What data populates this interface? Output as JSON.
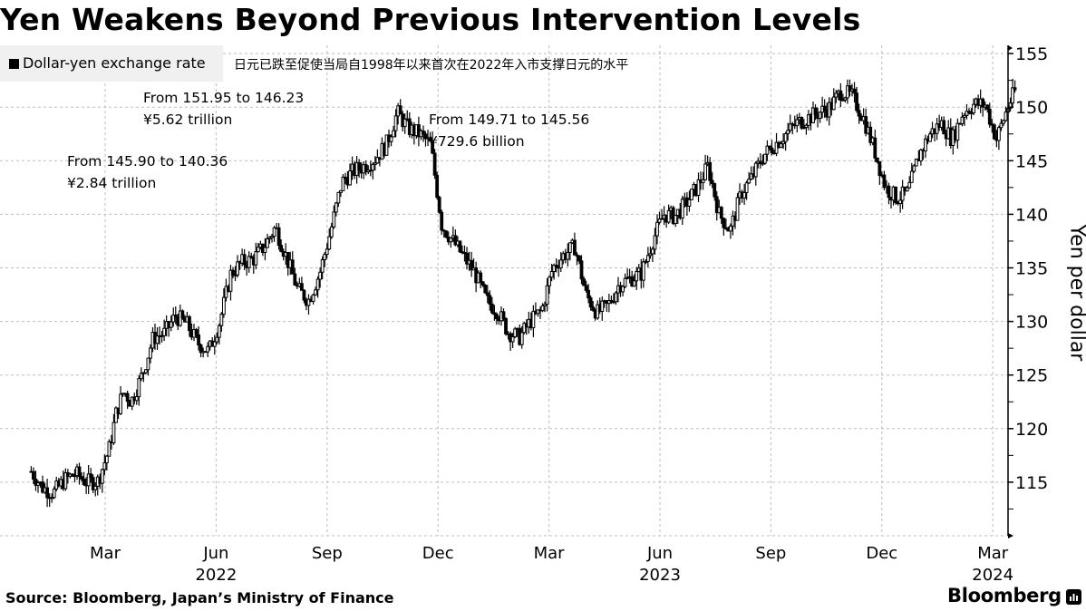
{
  "header": {
    "title": "Yen Weakens Beyond Previous Intervention Levels",
    "legend_label": "Dollar-yen exchange rate",
    "subtitle": "日元已跌至促使当局自1998年以来首次在2022年入市支撑日元的水平"
  },
  "annotations": [
    {
      "line1": "From 145.90 to 140.36",
      "line2": "¥2.84 trillion"
    },
    {
      "line1": "From 151.95 to 146.23",
      "line2": "¥5.62 trillion"
    },
    {
      "line1": "From 149.71 to 145.56",
      "line2": "¥729.6 billion"
    }
  ],
  "footer": {
    "source": "Source: Bloomberg, Japan’s Ministry of Finance",
    "brand": "Bloomberg"
  },
  "colors": {
    "series": "#000000",
    "grid": "#bdbdbd",
    "legend_bg": "#f0f0f0"
  },
  "chart_data": {
    "type": "line",
    "style": "candlestick",
    "title": "Yen Weakens Beyond Previous Intervention Levels",
    "ylabel": "Yen per dollar",
    "xlabel": "",
    "ylim": [
      110,
      156
    ],
    "yticks": [
      115,
      120,
      125,
      130,
      135,
      140,
      145,
      150,
      155
    ],
    "grid": true,
    "legend": "top-left",
    "x_months_start": "2022-01",
    "xticks": [
      {
        "label": "Mar",
        "month_index": 2
      },
      {
        "label": "Jun",
        "month_index": 5
      },
      {
        "label": "Sep",
        "month_index": 8
      },
      {
        "label": "Dec",
        "month_index": 11
      },
      {
        "label": "Mar",
        "month_index": 14
      },
      {
        "label": "Jun",
        "month_index": 17
      },
      {
        "label": "Sep",
        "month_index": 20
      },
      {
        "label": "Dec",
        "month_index": 23
      },
      {
        "label": "Mar",
        "month_index": 26
      }
    ],
    "year_labels": [
      {
        "label": "2022",
        "month_index": 5
      },
      {
        "label": "2023",
        "month_index": 17
      },
      {
        "label": "2024",
        "month_index": 26
      }
    ],
    "series": [
      {
        "name": "Dollar-yen exchange rate",
        "points_month_index": [
          0,
          0.3,
          0.6,
          0.9,
          1.2,
          1.5,
          1.8,
          2.1,
          2.3,
          2.5,
          2.7,
          3.0,
          3.3,
          3.6,
          3.9,
          4.2,
          4.5,
          4.8,
          5.1,
          5.4,
          5.7,
          6.0,
          6.3,
          6.6,
          6.9,
          7.2,
          7.5,
          7.8,
          8.1,
          8.4,
          8.7,
          9.0,
          9.3,
          9.6,
          9.9,
          10.2,
          10.5,
          10.8,
          11.1,
          11.4,
          11.7,
          12.0,
          12.3,
          12.6,
          12.9,
          13.2,
          13.5,
          13.8,
          14.1,
          14.4,
          14.7,
          15.0,
          15.3,
          15.6,
          15.9,
          16.2,
          16.5,
          16.8,
          17.1,
          17.4,
          17.7,
          18.0,
          18.3,
          18.6,
          18.9,
          19.2,
          19.5,
          19.8,
          20.1,
          20.4,
          20.7,
          21.0,
          21.3,
          21.6,
          21.9,
          22.2,
          22.5,
          22.8,
          23.1,
          23.4,
          23.7,
          24.0,
          24.3,
          24.6,
          24.9,
          25.2,
          25.5,
          25.8,
          26.1,
          26.4,
          26.6
        ],
        "values": [
          116.0,
          114.5,
          114.0,
          115.2,
          115.8,
          115.0,
          115.1,
          118.0,
          121.5,
          123.5,
          122.5,
          125.0,
          128.5,
          128.9,
          130.5,
          129.8,
          128.0,
          127.2,
          130.0,
          134.5,
          135.5,
          135.8,
          137.0,
          138.8,
          136.0,
          133.0,
          132.0,
          134.5,
          138.5,
          143.0,
          144.0,
          144.5,
          145.2,
          146.5,
          149.5,
          148.0,
          147.5,
          146.5,
          139.0,
          137.5,
          136.0,
          134.5,
          132.0,
          131.0,
          129.0,
          128.5,
          130.0,
          131.0,
          135.0,
          136.2,
          137.0,
          132.5,
          130.8,
          131.5,
          133.5,
          134.0,
          134.5,
          137.5,
          140.0,
          139.8,
          141.0,
          142.5,
          144.5,
          140.0,
          138.5,
          142.0,
          143.5,
          145.5,
          146.5,
          147.5,
          148.5,
          149.0,
          149.5,
          150.0,
          151.5,
          151.0,
          149.0,
          146.0,
          142.5,
          141.5,
          142.0,
          145.5,
          147.5,
          148.5,
          147.0,
          149.5,
          150.3,
          150.2,
          147.0,
          150.0,
          151.5
        ]
      }
    ]
  }
}
